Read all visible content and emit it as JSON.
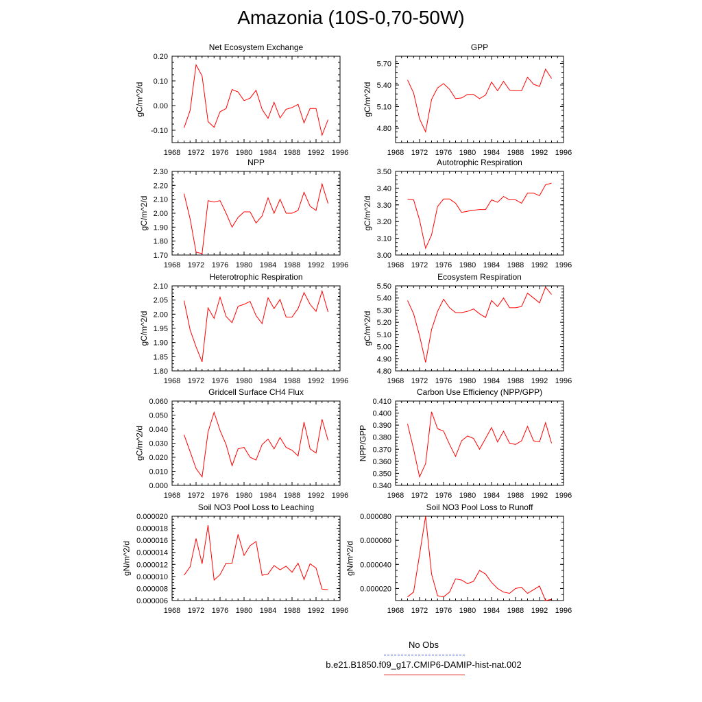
{
  "title": "Amazonia (10S-0,70-50W)",
  "legend": [
    {
      "label": "No Obs",
      "color": "#3b49e0",
      "style": "dashed"
    },
    {
      "label": "b.e21.B1850.f09_g17.CMIP6-DAMIP-hist-nat.002",
      "color": "#e01b1b",
      "style": "solid"
    }
  ],
  "line_color": "#ff0000",
  "chart_data": [
    {
      "type": "line",
      "title": "Net Ecosystem Exchange",
      "ylabel": "gC/m^2/d",
      "xlim": [
        1968,
        1996
      ],
      "xticks": [
        1968,
        1972,
        1976,
        1980,
        1984,
        1988,
        1992,
        1996
      ],
      "ylim": [
        -0.15,
        0.2
      ],
      "yticks": [
        "0.20",
        "0.10",
        "0.00",
        "-0.10"
      ],
      "ytick_values": [
        0.2,
        0.1,
        0.0,
        -0.1
      ],
      "x": [
        1970,
        1971,
        1972,
        1973,
        1974,
        1975,
        1976,
        1977,
        1978,
        1979,
        1980,
        1981,
        1982,
        1983,
        1984,
        1985,
        1986,
        1987,
        1988,
        1989,
        1990,
        1991,
        1992,
        1993,
        1994
      ],
      "series": [
        {
          "values": [
            -0.09,
            -0.02,
            0.165,
            0.12,
            -0.065,
            -0.088,
            -0.025,
            -0.012,
            0.065,
            0.055,
            0.02,
            0.03,
            0.062,
            -0.015,
            -0.052,
            0.013,
            -0.05,
            -0.015,
            -0.008,
            0.005,
            -0.07,
            -0.012,
            -0.012,
            -0.12,
            -0.057
          ]
        }
      ]
    },
    {
      "type": "line",
      "title": "GPP",
      "ylabel": "gC/m^2/d",
      "xlim": [
        1968,
        1996
      ],
      "xticks": [
        1968,
        1972,
        1976,
        1980,
        1984,
        1988,
        1992,
        1996
      ],
      "ylim": [
        4.6,
        5.8
      ],
      "yticks": [
        "5.70",
        "5.40",
        "5.10",
        "4.80"
      ],
      "ytick_values": [
        5.7,
        5.4,
        5.1,
        4.8
      ],
      "x": [
        1970,
        1971,
        1972,
        1973,
        1974,
        1975,
        1976,
        1977,
        1978,
        1979,
        1980,
        1981,
        1982,
        1983,
        1984,
        1985,
        1986,
        1987,
        1988,
        1989,
        1990,
        1991,
        1992,
        1993,
        1994
      ],
      "series": [
        {
          "values": [
            5.47,
            5.29,
            4.93,
            4.75,
            5.2,
            5.36,
            5.42,
            5.34,
            5.21,
            5.22,
            5.27,
            5.27,
            5.21,
            5.26,
            5.44,
            5.32,
            5.45,
            5.33,
            5.32,
            5.32,
            5.51,
            5.41,
            5.38,
            5.62,
            5.49
          ]
        }
      ]
    },
    {
      "type": "line",
      "title": "NPP",
      "ylabel": "gC/m^2/d",
      "xlim": [
        1968,
        1996
      ],
      "xticks": [
        1968,
        1972,
        1976,
        1980,
        1984,
        1988,
        1992,
        1996
      ],
      "ylim": [
        1.7,
        2.3
      ],
      "yticks": [
        "2.30",
        "2.20",
        "2.10",
        "2.00",
        "1.90",
        "1.80",
        "1.70"
      ],
      "ytick_values": [
        2.3,
        2.2,
        2.1,
        2.0,
        1.9,
        1.8,
        1.7
      ],
      "x": [
        1970,
        1971,
        1972,
        1973,
        1974,
        1975,
        1976,
        1977,
        1978,
        1979,
        1980,
        1981,
        1982,
        1983,
        1984,
        1985,
        1986,
        1987,
        1988,
        1989,
        1990,
        1991,
        1992,
        1993,
        1994
      ],
      "series": [
        {
          "values": [
            2.14,
            1.96,
            1.72,
            1.71,
            2.09,
            2.08,
            2.09,
            2.0,
            1.9,
            1.97,
            2.01,
            2.01,
            1.93,
            1.98,
            2.11,
            2.0,
            2.1,
            2.0,
            2.0,
            2.02,
            2.15,
            2.05,
            2.02,
            2.21,
            2.07
          ]
        }
      ]
    },
    {
      "type": "line",
      "title": "Autotrophic Respiration",
      "ylabel": "gC/m^2/d",
      "xlim": [
        1968,
        1996
      ],
      "xticks": [
        1968,
        1972,
        1976,
        1980,
        1984,
        1988,
        1992,
        1996
      ],
      "ylim": [
        3.0,
        3.5
      ],
      "yticks": [
        "3.50",
        "3.40",
        "3.30",
        "3.20",
        "3.10",
        "3.00"
      ],
      "ytick_values": [
        3.5,
        3.4,
        3.3,
        3.2,
        3.1,
        3.0
      ],
      "x": [
        1970,
        1971,
        1972,
        1973,
        1974,
        1975,
        1976,
        1977,
        1978,
        1979,
        1980,
        1981,
        1982,
        1983,
        1984,
        1985,
        1986,
        1987,
        1988,
        1989,
        1990,
        1991,
        1992,
        1993,
        1994
      ],
      "series": [
        {
          "values": [
            3.335,
            3.33,
            3.21,
            3.04,
            3.12,
            3.29,
            3.335,
            3.335,
            3.31,
            3.255,
            3.262,
            3.268,
            3.272,
            3.272,
            3.33,
            3.315,
            3.35,
            3.33,
            3.33,
            3.31,
            3.37,
            3.37,
            3.355,
            3.42,
            3.43
          ]
        }
      ]
    },
    {
      "type": "line",
      "title": "Heterotrophic Respiration",
      "ylabel": "gC/m^2/d",
      "xlim": [
        1968,
        1996
      ],
      "xticks": [
        1968,
        1972,
        1976,
        1980,
        1984,
        1988,
        1992,
        1996
      ],
      "ylim": [
        1.8,
        2.1
      ],
      "yticks": [
        "2.10",
        "2.05",
        "2.00",
        "1.95",
        "1.90",
        "1.85",
        "1.80"
      ],
      "ytick_values": [
        2.1,
        2.05,
        2.0,
        1.95,
        1.9,
        1.85,
        1.8
      ],
      "x": [
        1970,
        1971,
        1972,
        1973,
        1974,
        1975,
        1976,
        1977,
        1978,
        1979,
        1980,
        1981,
        1982,
        1983,
        1984,
        1985,
        1986,
        1987,
        1988,
        1989,
        1990,
        1991,
        1992,
        1993,
        1994
      ],
      "series": [
        {
          "values": [
            2.048,
            1.945,
            1.885,
            1.832,
            2.022,
            1.985,
            2.06,
            1.992,
            1.97,
            2.028,
            2.035,
            2.045,
            1.995,
            1.967,
            2.058,
            2.02,
            2.052,
            1.99,
            1.99,
            2.02,
            2.076,
            2.035,
            2.01,
            2.082,
            2.008
          ]
        }
      ]
    },
    {
      "type": "line",
      "title": "Ecosystem Respiration",
      "ylabel": "gC/m^2/d",
      "xlim": [
        1968,
        1996
      ],
      "xticks": [
        1968,
        1972,
        1976,
        1980,
        1984,
        1988,
        1992,
        1996
      ],
      "ylim": [
        4.8,
        5.5
      ],
      "yticks": [
        "5.50",
        "5.40",
        "5.30",
        "5.20",
        "5.10",
        "5.00",
        "4.90",
        "4.80"
      ],
      "ytick_values": [
        5.5,
        5.4,
        5.3,
        5.2,
        5.1,
        5.0,
        4.9,
        4.8
      ],
      "x": [
        1970,
        1971,
        1972,
        1973,
        1974,
        1975,
        1976,
        1977,
        1978,
        1979,
        1980,
        1981,
        1982,
        1983,
        1984,
        1985,
        1986,
        1987,
        1988,
        1989,
        1990,
        1991,
        1992,
        1993,
        1994
      ],
      "series": [
        {
          "values": [
            5.38,
            5.27,
            5.09,
            4.87,
            5.14,
            5.29,
            5.39,
            5.32,
            5.28,
            5.28,
            5.29,
            5.31,
            5.27,
            5.24,
            5.38,
            5.33,
            5.4,
            5.32,
            5.32,
            5.33,
            5.44,
            5.4,
            5.36,
            5.49,
            5.43
          ]
        }
      ]
    },
    {
      "type": "line",
      "title": "Gridcell Surface CH4 Flux",
      "ylabel": "gC/m^2/d",
      "xlim": [
        1968,
        1996
      ],
      "xticks": [
        1968,
        1972,
        1976,
        1980,
        1984,
        1988,
        1992,
        1996
      ],
      "ylim": [
        0.0,
        0.06
      ],
      "yticks": [
        "0.060",
        "0.050",
        "0.040",
        "0.030",
        "0.020",
        "0.010",
        "0.000"
      ],
      "ytick_values": [
        0.06,
        0.05,
        0.04,
        0.03,
        0.02,
        0.01,
        0.0
      ],
      "x": [
        1970,
        1971,
        1972,
        1973,
        1974,
        1975,
        1976,
        1977,
        1978,
        1979,
        1980,
        1981,
        1982,
        1983,
        1984,
        1985,
        1986,
        1987,
        1988,
        1989,
        1990,
        1991,
        1992,
        1993,
        1994
      ],
      "series": [
        {
          "values": [
            0.036,
            0.024,
            0.012,
            0.006,
            0.038,
            0.052,
            0.039,
            0.029,
            0.014,
            0.026,
            0.027,
            0.02,
            0.018,
            0.029,
            0.033,
            0.026,
            0.034,
            0.027,
            0.025,
            0.021,
            0.045,
            0.026,
            0.023,
            0.047,
            0.032
          ]
        }
      ]
    },
    {
      "type": "line",
      "title": "Carbon Use Efficiency (NPP/GPP)",
      "ylabel": "NPP/GPP",
      "xlim": [
        1968,
        1996
      ],
      "xticks": [
        1968,
        1972,
        1976,
        1980,
        1984,
        1988,
        1992,
        1996
      ],
      "ylim": [
        0.34,
        0.41
      ],
      "yticks": [
        "0.410",
        "0.400",
        "0.390",
        "0.380",
        "0.370",
        "0.360",
        "0.350",
        "0.340"
      ],
      "ytick_values": [
        0.41,
        0.4,
        0.39,
        0.38,
        0.37,
        0.36,
        0.35,
        0.34
      ],
      "x": [
        1970,
        1971,
        1972,
        1973,
        1974,
        1975,
        1976,
        1977,
        1978,
        1979,
        1980,
        1981,
        1982,
        1983,
        1984,
        1985,
        1986,
        1987,
        1988,
        1989,
        1990,
        1991,
        1992,
        1993,
        1994
      ],
      "series": [
        {
          "values": [
            0.391,
            0.37,
            0.347,
            0.358,
            0.401,
            0.387,
            0.385,
            0.374,
            0.364,
            0.377,
            0.381,
            0.379,
            0.37,
            0.379,
            0.388,
            0.376,
            0.385,
            0.375,
            0.374,
            0.377,
            0.389,
            0.377,
            0.376,
            0.392,
            0.375
          ]
        }
      ]
    },
    {
      "type": "line",
      "title": "Soil NO3 Pool Loss to Leaching",
      "ylabel": "gN/m^2/d",
      "xlim": [
        1968,
        1996
      ],
      "xticks": [
        1968,
        1972,
        1976,
        1980,
        1984,
        1988,
        1992,
        1996
      ],
      "ylim": [
        6e-06,
        2e-05
      ],
      "yticks": [
        "0.000020",
        "0.000018",
        "0.000016",
        "0.000014",
        "0.000012",
        "0.000010",
        "0.000008",
        "0.000006"
      ],
      "ytick_values": [
        2e-05,
        1.8e-05,
        1.6e-05,
        1.4e-05,
        1.2e-05,
        1e-05,
        8e-06,
        6e-06
      ],
      "x": [
        1970,
        1971,
        1972,
        1973,
        1974,
        1975,
        1976,
        1977,
        1978,
        1979,
        1980,
        1981,
        1982,
        1983,
        1984,
        1985,
        1986,
        1987,
        1988,
        1989,
        1990,
        1991,
        1992,
        1993,
        1994
      ],
      "series": [
        {
          "values": [
            1.02e-05,
            1.16e-05,
            1.63e-05,
            1.21e-05,
            1.85e-05,
            9.4e-06,
            1.03e-05,
            1.22e-05,
            1.22e-05,
            1.7e-05,
            1.35e-05,
            1.51e-05,
            1.58e-05,
            1.02e-05,
            1.04e-05,
            1.18e-05,
            1.11e-05,
            1.17e-05,
            1.07e-05,
            1.22e-05,
            9.5e-06,
            1.21e-05,
            1.14e-05,
            7.9e-06,
            7.8e-06
          ]
        }
      ]
    },
    {
      "type": "line",
      "title": "Soil NO3 Pool Loss to Runoff",
      "ylabel": "gN/m^2/d",
      "xlim": [
        1968,
        1996
      ],
      "xticks": [
        1968,
        1972,
        1976,
        1980,
        1984,
        1988,
        1992,
        1996
      ],
      "ylim": [
        1e-05,
        8e-05
      ],
      "yticks": [
        "0.000080",
        "0.000060",
        "0.000040",
        "0.000020"
      ],
      "ytick_values": [
        8e-05,
        6e-05,
        4e-05,
        2e-05
      ],
      "x": [
        1970,
        1971,
        1972,
        1973,
        1974,
        1975,
        1976,
        1977,
        1978,
        1979,
        1980,
        1981,
        1982,
        1983,
        1984,
        1985,
        1986,
        1987,
        1988,
        1989,
        1990,
        1991,
        1992,
        1993,
        1994
      ],
      "series": [
        {
          "values": [
            1.3e-05,
            1.7e-05,
            4.8e-05,
            8e-05,
            3.2e-05,
            1.4e-05,
            1.3e-05,
            1.7e-05,
            2.8e-05,
            2.7e-05,
            2.4e-05,
            2.6e-05,
            3.5e-05,
            3.2e-05,
            2.5e-05,
            2e-05,
            1.7e-05,
            1.6e-05,
            2e-05,
            2.1e-05,
            1.6e-05,
            1.9e-05,
            2.2e-05,
            1e-05,
            1.1e-05
          ]
        }
      ]
    }
  ]
}
